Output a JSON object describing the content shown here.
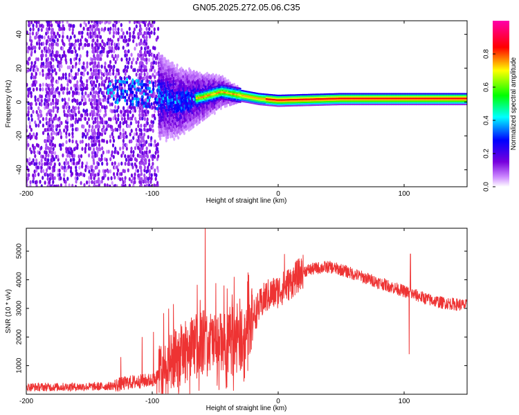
{
  "page_title": "GN05.2025.272.05.06.C35",
  "chart_data": [
    {
      "type": "heatmap",
      "xlabel": "Height of straight line (km)",
      "ylabel": "Frequency (Hz)",
      "xlim": [
        -200,
        150
      ],
      "ylim": [
        -50,
        48
      ],
      "x_ticks": [
        -200,
        -100,
        0,
        100
      ],
      "y_ticks": [
        -40,
        -20,
        0,
        20,
        40
      ],
      "colorbar": {
        "label": "Normalized spectral amplitude",
        "range": [
          0.0,
          1.0
        ],
        "ticks": [
          0.0,
          0.2,
          0.4,
          0.6,
          0.8
        ],
        "tick_labels": [
          "0.0",
          "0.2",
          "0.4",
          "0.6",
          "0.8"
        ],
        "colormap": [
          "#ffffff",
          "#7700dd",
          "#0000ff",
          "#00ffff",
          "#00ff00",
          "#ffff00",
          "#ff0000",
          "#ff00ff"
        ]
      },
      "dominant_frequency_band": [
        {
          "x": -130,
          "freq": 8
        },
        {
          "x": -100,
          "freq": 5
        },
        {
          "x": -80,
          "freq": 0
        },
        {
          "x": -60,
          "freq": 3
        },
        {
          "x": -45,
          "freq": 6
        },
        {
          "x": -30,
          "freq": 4
        },
        {
          "x": -15,
          "freq": 2
        },
        {
          "x": 0,
          "freq": 1
        },
        {
          "x": 50,
          "freq": 2
        },
        {
          "x": 100,
          "freq": 2
        },
        {
          "x": 150,
          "freq": 2
        }
      ],
      "regions": [
        {
          "x_range": [
            -200,
            -100
          ],
          "description_value": "broadband noise",
          "amplitude": 0.1
        },
        {
          "x_range": [
            -100,
            -30
          ],
          "amplitude": 0.3
        },
        {
          "x_range": [
            -30,
            150
          ],
          "amplitude": 0.9
        }
      ]
    },
    {
      "type": "line",
      "xlabel": "Height of straight line (km)",
      "ylabel": "SNR (10 * v/v)",
      "xlim": [
        -200,
        150
      ],
      "ylim": [
        0,
        5800
      ],
      "x_ticks": [
        -200,
        -100,
        0,
        100
      ],
      "y_ticks": [
        1000,
        2000,
        3000,
        4000,
        5000
      ],
      "series": [
        {
          "name": "SNR",
          "color": "#ee3333",
          "x": [
            -200,
            -180,
            -160,
            -140,
            -130,
            -120,
            -110,
            -100,
            -90,
            -80,
            -70,
            -60,
            -50,
            -40,
            -30,
            -20,
            -10,
            0,
            10,
            20,
            30,
            40,
            50,
            60,
            70,
            80,
            90,
            100,
            110,
            120,
            130,
            140,
            150
          ],
          "y": [
            250,
            250,
            260,
            270,
            300,
            400,
            450,
            500,
            800,
            1300,
            1600,
            1900,
            1800,
            1700,
            1900,
            2700,
            3400,
            3600,
            3900,
            4300,
            4400,
            4450,
            4350,
            4200,
            4050,
            3900,
            3750,
            3600,
            3450,
            3300,
            3200,
            3150,
            3100
          ]
        }
      ],
      "spikes": [
        {
          "x": -125,
          "y": 1300
        },
        {
          "x": -108,
          "y": 2000
        },
        {
          "x": -58,
          "y": 5800
        },
        {
          "x": -43,
          "y": 3800
        },
        {
          "x": -35,
          "y": 4100
        },
        {
          "x": 5,
          "y": 4900
        },
        {
          "x": 105,
          "y": 4900
        },
        {
          "x": 104,
          "y": 1400
        }
      ]
    }
  ]
}
